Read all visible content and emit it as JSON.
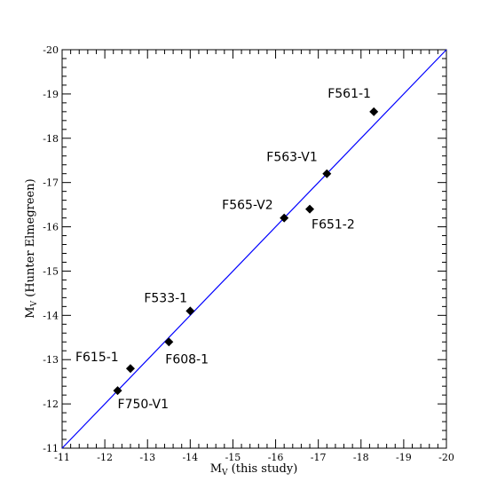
{
  "chart_data": {
    "type": "scatter",
    "xlabel": {
      "main": "M",
      "sub": "V",
      "rest": " (this study)"
    },
    "ylabel": {
      "main": "M",
      "sub": "V",
      "rest": " (Hunter Elmegreen)"
    },
    "xlim": [
      -11,
      -20
    ],
    "ylim": [
      -11,
      -20
    ],
    "xticks": [
      -11,
      -12,
      -13,
      -14,
      -15,
      -16,
      -17,
      -18,
      -19,
      -20
    ],
    "yticks": [
      -11,
      -12,
      -13,
      -14,
      -15,
      -16,
      -17,
      -18,
      -19,
      -20
    ],
    "reference_line": {
      "type": "one-to-one",
      "color": "#0000ff"
    },
    "marker": {
      "shape": "diamond",
      "color": "#000000"
    },
    "points": [
      {
        "name": "F561-1",
        "x": -18.3,
        "y": -18.6
      },
      {
        "name": "F563-V1",
        "x": -17.2,
        "y": -17.2
      },
      {
        "name": "F565-V2",
        "x": -16.2,
        "y": -16.2
      },
      {
        "name": "F651-2",
        "x": -16.8,
        "y": -16.4
      },
      {
        "name": "F533-1",
        "x": -14.0,
        "y": -14.1
      },
      {
        "name": "F608-1",
        "x": -13.5,
        "y": -13.4
      },
      {
        "name": "F615-1",
        "x": -12.6,
        "y": -12.8
      },
      {
        "name": "F750-V1",
        "x": -12.3,
        "y": -12.3
      }
    ]
  }
}
